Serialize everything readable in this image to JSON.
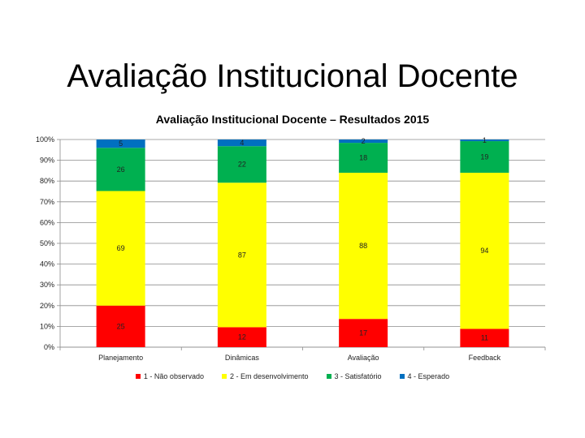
{
  "slide": {
    "title": "Avaliação Institucional Docente"
  },
  "chart_data": {
    "type": "bar",
    "stacked": "percent",
    "title": "Avaliação Institucional Docente – Resultados 2015",
    "xlabel": "",
    "ylabel": "",
    "ylim": [
      0,
      100
    ],
    "yticks": [
      "0%",
      "10%",
      "20%",
      "30%",
      "40%",
      "50%",
      "60%",
      "70%",
      "80%",
      "90%",
      "100%"
    ],
    "categories": [
      "Planejamento",
      "Dinâmicas",
      "Avaliação",
      "Feedback"
    ],
    "series": [
      {
        "name": "1 - Não observado",
        "color": "#ff0000",
        "values": [
          25,
          12,
          17,
          11
        ]
      },
      {
        "name": "2 - Em desenvolvimento",
        "color": "#ffff00",
        "values": [
          69,
          87,
          88,
          94
        ]
      },
      {
        "name": "3 - Satisfatório",
        "color": "#00b050",
        "values": [
          26,
          22,
          18,
          19
        ]
      },
      {
        "name": "4 - Esperado",
        "color": "#0070c0",
        "values": [
          5,
          4,
          2,
          1
        ]
      }
    ],
    "legend_position": "bottom",
    "grid": true
  }
}
